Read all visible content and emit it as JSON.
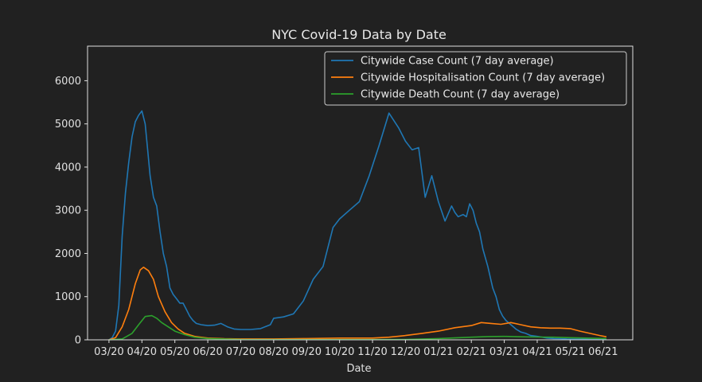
{
  "chart_data": {
    "type": "line",
    "title": "NYC Covid-19 Data by Date",
    "xlabel": "Date",
    "ylabel": "",
    "ylim": [
      0,
      6800
    ],
    "xlim": [
      -0.65,
      15.9
    ],
    "yticks": [
      0,
      1000,
      2000,
      3000,
      4000,
      5000,
      6000
    ],
    "x_tick_labels": [
      "03/20",
      "04/20",
      "05/20",
      "06/20",
      "07/20",
      "08/20",
      "09/20",
      "10/20",
      "11/20",
      "12/20",
      "01/21",
      "02/21",
      "03/21",
      "04/21",
      "05/21",
      "06/21"
    ],
    "x_unit": "months since 03/20",
    "grid": false,
    "legend_position": "top-right",
    "series": [
      {
        "name": "Citywide Case Count (7 day average)",
        "color": "#1f77b4",
        "x": [
          0,
          0.1,
          0.2,
          0.3,
          0.4,
          0.5,
          0.6,
          0.7,
          0.8,
          0.9,
          1.0,
          1.1,
          1.15,
          1.25,
          1.35,
          1.45,
          1.55,
          1.65,
          1.75,
          1.85,
          1.95,
          2.05,
          2.15,
          2.25,
          2.35,
          2.45,
          2.55,
          2.65,
          2.8,
          2.9,
          3.0,
          3.2,
          3.4,
          3.6,
          3.8,
          4.0,
          4.3,
          4.6,
          4.9,
          5.0,
          5.3,
          5.6,
          5.9,
          6.2,
          6.5,
          6.8,
          7.0,
          7.3,
          7.6,
          7.9,
          8.2,
          8.5,
          8.8,
          9.0,
          9.2,
          9.4,
          9.6,
          9.8,
          10.0,
          10.2,
          10.4,
          10.5,
          10.6,
          10.75,
          10.85,
          10.95,
          11.05,
          11.15,
          11.25,
          11.35,
          11.5,
          11.65,
          11.75,
          11.85,
          11.95,
          12.05,
          12.2,
          12.35,
          12.5,
          12.65,
          12.8,
          13.0,
          13.15,
          13.3,
          13.5,
          13.7,
          13.9,
          14.1,
          14.3,
          14.5,
          14.7,
          14.9,
          15.1
        ],
        "values": [
          0,
          50,
          200,
          800,
          2400,
          3400,
          4100,
          4700,
          5050,
          5200,
          5300,
          5000,
          4600,
          3800,
          3300,
          3100,
          2500,
          2000,
          1700,
          1200,
          1050,
          950,
          850,
          850,
          700,
          550,
          450,
          380,
          350,
          340,
          330,
          340,
          380,
          300,
          250,
          240,
          240,
          260,
          350,
          500,
          530,
          600,
          900,
          1400,
          1700,
          2600,
          2800,
          3000,
          3200,
          3800,
          4500,
          5250,
          4900,
          4600,
          4400,
          4450,
          3300,
          3800,
          3200,
          2750,
          3100,
          2950,
          2850,
          2900,
          2850,
          3150,
          3000,
          2700,
          2500,
          2100,
          1700,
          1200,
          1000,
          700,
          550,
          450,
          350,
          250,
          180,
          150,
          100,
          80,
          60,
          40,
          30,
          25,
          20,
          18,
          15,
          12,
          10,
          8,
          6
        ],
        "note": ""
      },
      {
        "name": "Citywide Hospitalisation Count (7 day average)",
        "color": "#ff7f0e",
        "x": [
          0,
          0.2,
          0.4,
          0.6,
          0.8,
          0.95,
          1.05,
          1.2,
          1.35,
          1.5,
          1.7,
          1.9,
          2.1,
          2.3,
          2.6,
          3.0,
          3.5,
          4.0,
          5.0,
          6.0,
          7.0,
          8.0,
          8.5,
          9.0,
          9.5,
          10.0,
          10.5,
          11.0,
          11.3,
          11.6,
          11.9,
          12.2,
          12.5,
          12.8,
          13.1,
          13.4,
          13.7,
          14.0,
          14.3,
          14.6,
          14.9,
          15.1
        ],
        "values": [
          0,
          50,
          300,
          700,
          1300,
          1620,
          1680,
          1600,
          1400,
          1000,
          650,
          400,
          250,
          150,
          80,
          40,
          25,
          20,
          20,
          30,
          40,
          40,
          60,
          100,
          150,
          200,
          280,
          330,
          400,
          380,
          360,
          400,
          350,
          300,
          280,
          270,
          270,
          260,
          200,
          150,
          100,
          70
        ],
        "note": ""
      },
      {
        "name": "Citywide Death Count (7 day average)",
        "color": "#2ca02c",
        "x": [
          0,
          0.4,
          0.7,
          0.9,
          1.1,
          1.3,
          1.45,
          1.6,
          1.8,
          2.0,
          2.3,
          2.6,
          3.0,
          4.0,
          6.0,
          8.0,
          9.0,
          10.0,
          11.0,
          11.5,
          12.0,
          12.5,
          13.0,
          13.5,
          14.0,
          14.5,
          15.1
        ],
        "values": [
          0,
          20,
          150,
          350,
          540,
          560,
          500,
          400,
          300,
          200,
          120,
          60,
          30,
          10,
          5,
          5,
          10,
          30,
          60,
          75,
          80,
          70,
          65,
          60,
          50,
          40,
          30
        ],
        "note": ""
      }
    ]
  }
}
